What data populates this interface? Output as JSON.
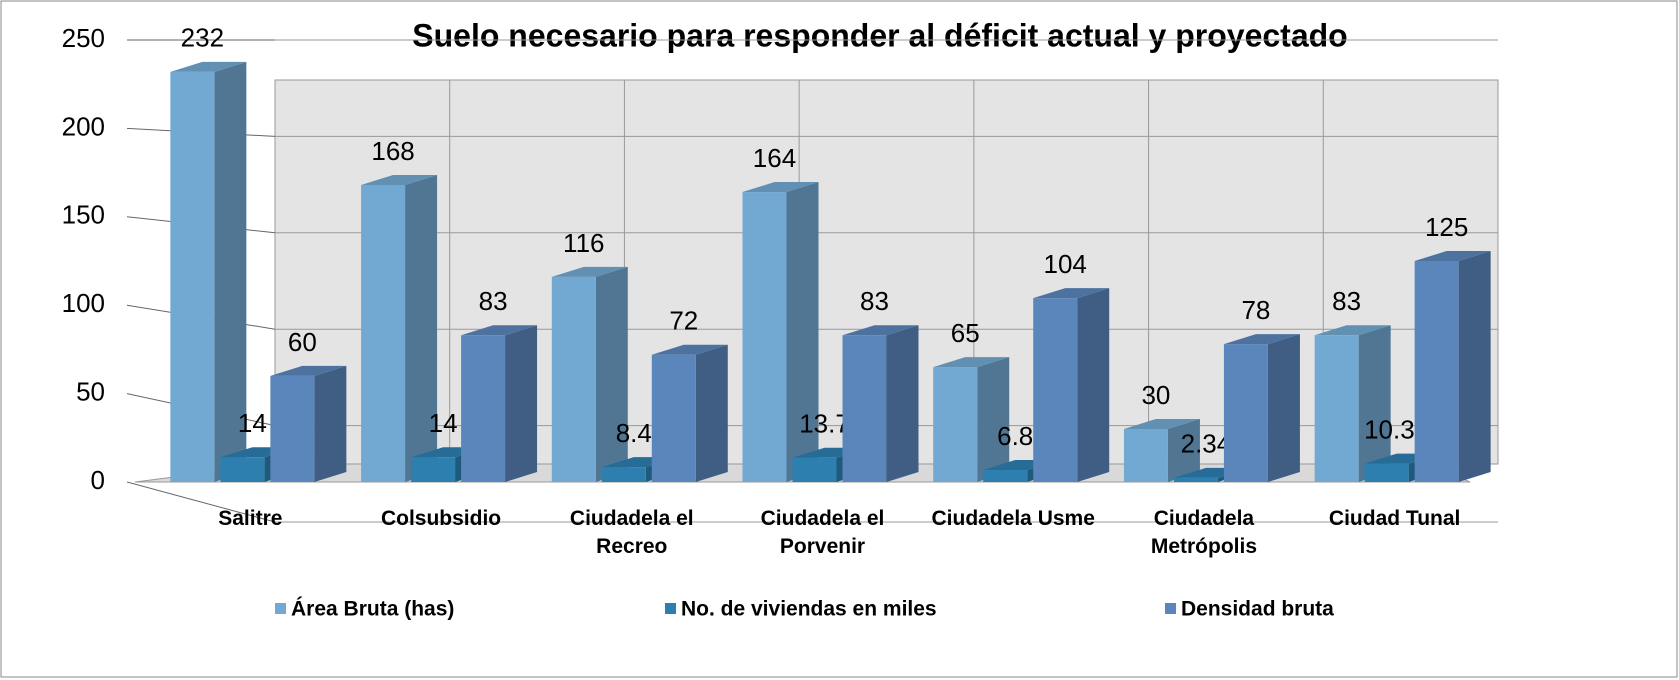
{
  "chart_data": {
    "type": "bar3d",
    "title": "Suelo necesario para responder al déficit actual y proyectado",
    "categories": [
      "Salitre",
      "Colsubsidio",
      "Ciudadela el Recreo",
      "Ciudadela el Porvenir",
      "Ciudadela Usme",
      "Ciudadela Metrópolis",
      "Ciudad Tunal"
    ],
    "series": [
      {
        "name": "Área Bruta (has)",
        "color": "#72a9d3",
        "values": [
          232,
          168,
          116,
          164,
          65,
          30,
          83
        ]
      },
      {
        "name": "No. de viviendas en miles",
        "color": "#2d7fb0",
        "values": [
          14,
          14,
          8.4,
          13.7,
          6.8,
          2.34,
          10.39
        ]
      },
      {
        "name": "Densidad bruta",
        "color": "#5b86bb",
        "values": [
          60,
          83,
          72,
          83,
          104,
          78,
          125
        ]
      }
    ],
    "ylim": [
      0,
      250
    ],
    "yticks": [
      0,
      50,
      100,
      150,
      200,
      250
    ],
    "grid": true,
    "legend": "bottom"
  }
}
